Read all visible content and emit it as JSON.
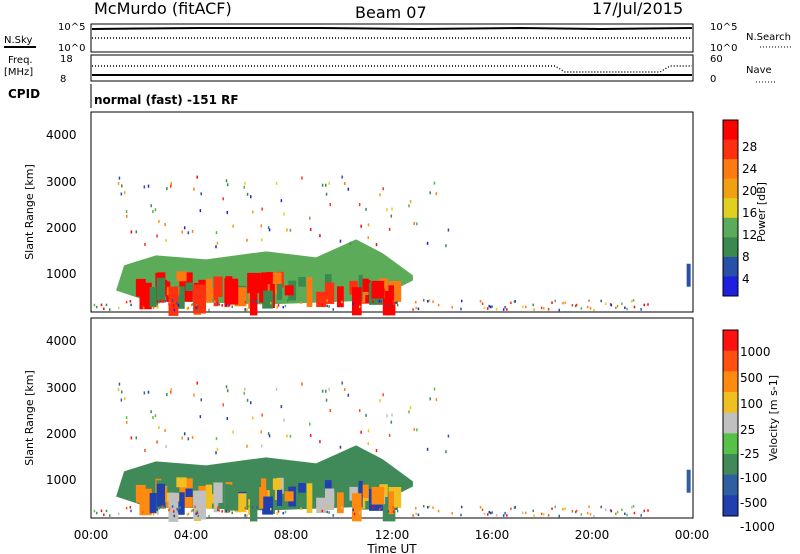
{
  "header": {
    "station": "McMurdo (fitACF)",
    "beam": "Beam 07",
    "date": "17/Jul/2015"
  },
  "panels_top": {
    "nsky_label": "N.Sky",
    "nsky_ticks": [
      "10^5",
      "10^0"
    ],
    "nsearch_label": "N.Search",
    "nsearch_ticks": [
      "10^5",
      "10^0"
    ],
    "freq_label": "Freq.",
    "freq_unit": "[MHz]",
    "freq_ticks": [
      "18",
      "8"
    ],
    "nave_label": "Nave",
    "nave_ticks": [
      "60",
      "0"
    ],
    "cpid_label": "CPID",
    "cpid_text": "normal (fast) -151 RF"
  },
  "colors": {
    "power_scale": [
      "#1f1fe0",
      "#2a4fa8",
      "#3a8a50",
      "#5cab58",
      "#e0d020",
      "#f0a010",
      "#ff7a10",
      "#ff3010",
      "#ff0000"
    ],
    "velocity_scale": [
      "#2040b0",
      "#2f5fa0",
      "#3f8a58",
      "#56c048",
      "#c0c0c0",
      "#f0c020",
      "#ff8a10",
      "#ff5010",
      "#ff1010"
    ]
  },
  "chart_data": [
    {
      "type": "heatmap",
      "name": "power",
      "ylabel": "Slant Range [km]",
      "yticks": [
        "4000",
        "3000",
        "2000",
        "1000"
      ],
      "ylim": [
        250,
        4600
      ],
      "xlim": [
        "00:00",
        "24:00"
      ],
      "colorbar_label": "Power [dB]",
      "colorbar_ticks": [
        "28",
        "24",
        "20",
        "16",
        "12",
        "8",
        "4"
      ],
      "colorbar_range": [
        0,
        32
      ],
      "echo_regions": [
        {
          "t_start": "01:00",
          "t_end": "12:50",
          "range_km": [
            500,
            1700
          ],
          "power_db": 26
        },
        {
          "t_start": "23:40",
          "t_end": "24:00",
          "range_km": [
            800,
            1300
          ],
          "power_db": 10
        }
      ]
    },
    {
      "type": "heatmap",
      "name": "velocity",
      "ylabel": "Slant Range [km]",
      "yticks": [
        "4000",
        "3000",
        "2000",
        "1000"
      ],
      "ylim": [
        250,
        4600
      ],
      "xaxis_ticks": [
        "00:00",
        "04:00",
        "08:00",
        "12:00",
        "16:00",
        "20:00",
        "00:00"
      ],
      "xlabel": "Time UT",
      "colorbar_label": "Velocity [m s-1]",
      "colorbar_ticks": [
        "1000",
        "500",
        "100",
        "25",
        "-25",
        "-100",
        "-500",
        "-1000"
      ],
      "echo_regions": [
        {
          "t_start": "01:00",
          "t_end": "12:50",
          "range_km": [
            500,
            1700
          ],
          "velocity_ms": 100
        },
        {
          "t_start": "23:40",
          "t_end": "24:00",
          "range_km": [
            800,
            1300
          ],
          "velocity_ms": 500
        }
      ]
    }
  ]
}
